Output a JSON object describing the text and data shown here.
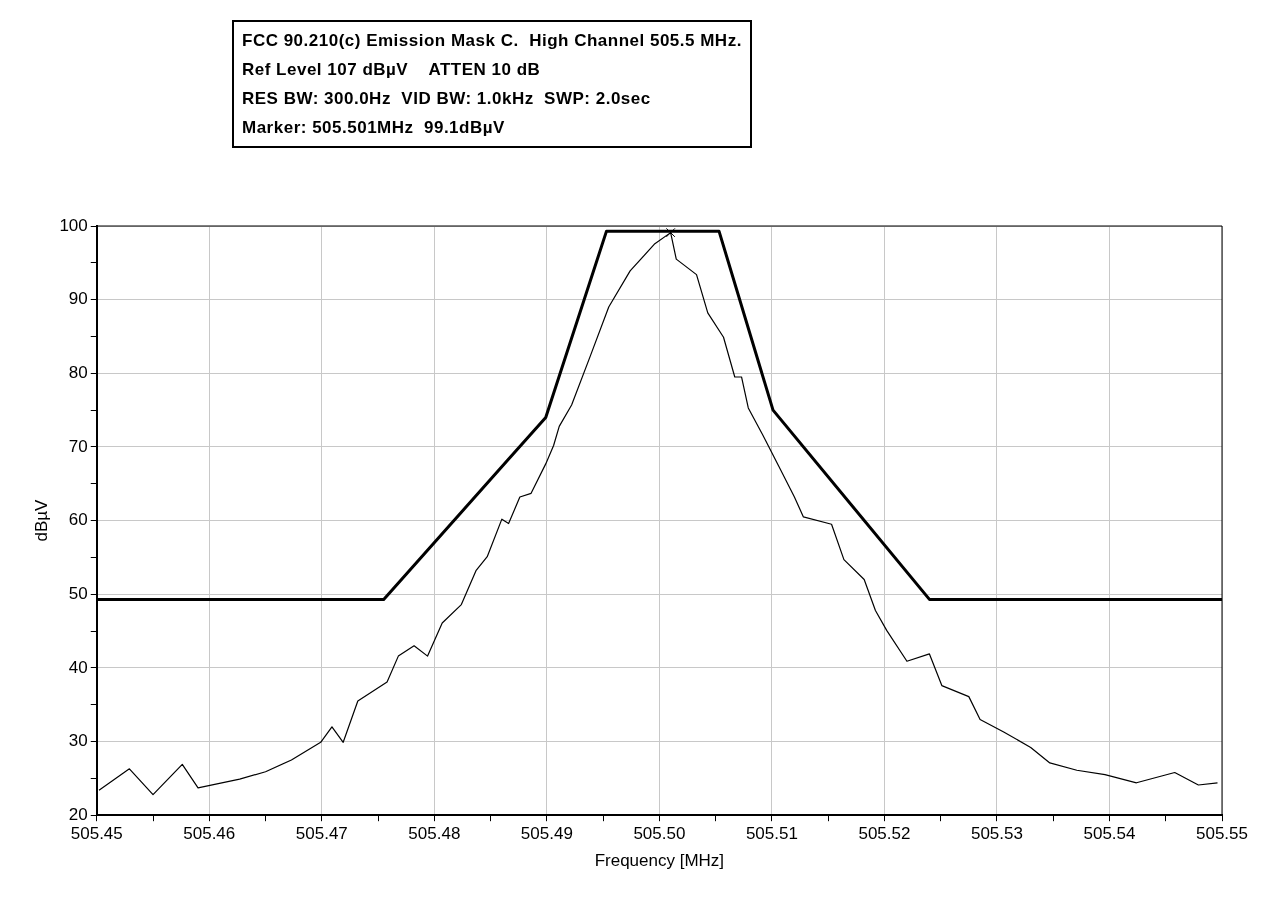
{
  "chart_data": {
    "type": "line",
    "title": "FCC 90.210(c) Emission Mask C.  High Channel 505.5 MHz.",
    "annotations": [
      "Ref Level 107 dBµV    ATTEN 10 dB",
      "RES BW: 300.0Hz  VID BW: 1.0kHz  SWP: 2.0sec",
      "Marker: 505.501MHz  99.1dBµV"
    ],
    "xlabel": "Frequency [MHz]",
    "ylabel": "dBµV",
    "xlim": [
      505.45,
      505.55
    ],
    "xticks": [
      505.45,
      {
        "value": 505.455,
        "label": null
      },
      505.46,
      {
        "value": 505.465,
        "label": null
      },
      505.47,
      {
        "value": 505.475,
        "label": null
      },
      505.48,
      {
        "value": 505.485,
        "label": null
      },
      505.49,
      {
        "value": 505.495,
        "label": null
      },
      {
        "value": 505.5,
        "label": "505.50"
      },
      {
        "value": 505.505,
        "label": null
      },
      505.51,
      {
        "value": 505.515,
        "label": null
      },
      505.52,
      {
        "value": 505.525,
        "label": null
      },
      505.53,
      {
        "value": 505.535,
        "label": null
      },
      505.54,
      {
        "value": 505.545,
        "label": null
      },
      505.55
    ],
    "ylim": [
      20,
      100
    ],
    "yticks": [
      20,
      {
        "value": 25,
        "label": null
      },
      30,
      {
        "value": 35,
        "label": null
      },
      40,
      {
        "value": 45,
        "label": null
      },
      50,
      {
        "value": 55,
        "label": null
      },
      60,
      {
        "value": 65,
        "label": null
      },
      70,
      {
        "value": 75,
        "label": null
      },
      80,
      {
        "value": 85,
        "label": null
      },
      90,
      {
        "value": 95,
        "label": null
      },
      100
    ],
    "grid": true,
    "legend": false,
    "marker": "none",
    "line_style": "solid",
    "series": [
      {
        "color": "#000000",
        "x": [
          505.45,
          505.4755,
          505.4899,
          505.4953,
          505.5053,
          505.5101,
          505.524,
          505.55
        ],
        "values": [
          49.3,
          49.3,
          74,
          99.3,
          99.3,
          75,
          49.3,
          49.3
        ]
      },
      {
        "color": "#000000",
        "x": [
          505.4502,
          505.4529,
          505.455,
          505.4576,
          505.459,
          505.4627,
          505.465,
          505.4673,
          505.4699,
          505.4709,
          505.4719,
          505.4732,
          505.4758,
          505.4768,
          505.4782,
          505.4794,
          505.4807,
          505.4824,
          505.4837,
          505.4847,
          505.486,
          505.4866,
          505.4876,
          505.4886,
          505.4899,
          505.4906,
          505.4911,
          505.4922,
          505.4939,
          505.4955,
          505.4974,
          505.4996,
          505.501,
          505.5015,
          505.5033,
          505.5043,
          505.5057,
          505.5067,
          505.5073,
          505.5079,
          505.5092,
          505.5106,
          505.512,
          505.5128,
          505.5153,
          505.5164,
          505.5182,
          505.5192,
          505.5202,
          505.522,
          505.524,
          505.5251,
          505.5275,
          505.5285,
          505.5306,
          505.533,
          505.5347,
          505.5371,
          505.5396,
          505.5424,
          505.5458,
          505.5479,
          505.5496
        ],
        "values": [
          23.4,
          26.3,
          22.8,
          26.9,
          23.7,
          24.9,
          25.9,
          27.5,
          29.9,
          32,
          29.9,
          35.5,
          38.1,
          41.6,
          43,
          41.6,
          46.1,
          48.6,
          53.2,
          55.1,
          60.2,
          59.6,
          63.2,
          63.7,
          67.7,
          70.2,
          72.8,
          75.7,
          82.5,
          89,
          93.9,
          97.6,
          99.1,
          95.5,
          93.4,
          88.2,
          84.9,
          79.5,
          79.5,
          75.3,
          71.6,
          67.4,
          63.2,
          60.5,
          59.5,
          54.7,
          52,
          47.8,
          45.1,
          40.9,
          41.9,
          37.6,
          36.1,
          33,
          31.3,
          29.2,
          27.1,
          26.1,
          25.5,
          24.4,
          25.8,
          24.1,
          24.4
        ]
      },
      {
        "type": "scatter",
        "color": "#000000",
        "marker": "cross",
        "x": [
          505.501
        ],
        "values": [
          99.1
        ]
      }
    ]
  }
}
